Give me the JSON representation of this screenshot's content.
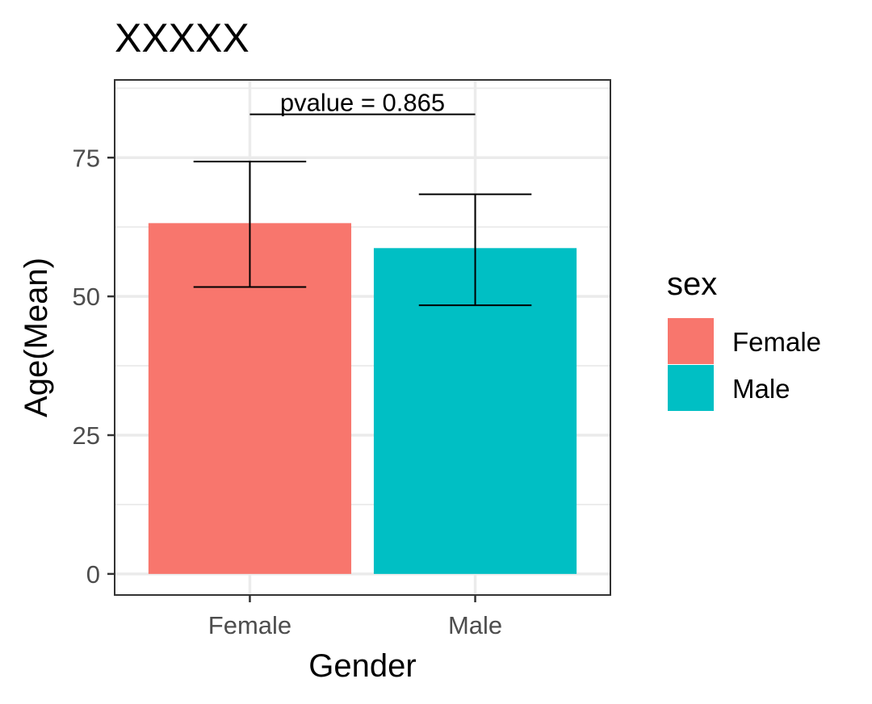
{
  "chart_data": {
    "type": "bar",
    "title": "XXXXX",
    "xlabel": "Gender",
    "ylabel": "Age(Mean)",
    "categories": [
      "Female",
      "Male"
    ],
    "values": [
      63.2,
      58.7
    ],
    "error_low": [
      51.7,
      48.4
    ],
    "error_high": [
      74.3,
      68.4
    ],
    "colors": [
      "#F8766D",
      "#00BFC4"
    ],
    "ylim": [
      -3.8,
      89
    ],
    "yticks": [
      0,
      25,
      50,
      75
    ],
    "yticks_labels": [
      "0",
      "25",
      "50",
      "75"
    ],
    "grid": true,
    "legend": {
      "title": "sex",
      "position": "right",
      "entries": [
        {
          "label": "Female",
          "color": "#F8766D"
        },
        {
          "label": "Male",
          "color": "#00BFC4"
        }
      ]
    },
    "annotation": {
      "text": "pvalue = 0.865",
      "y": 82.8
    }
  }
}
